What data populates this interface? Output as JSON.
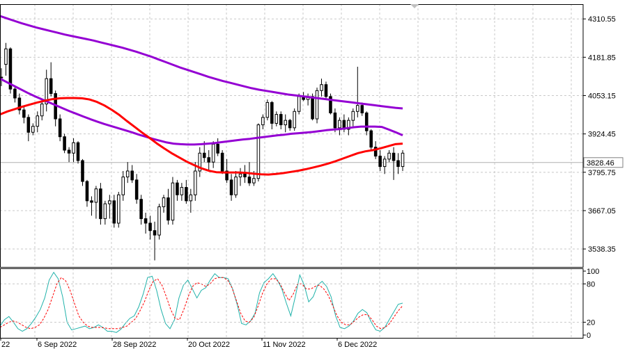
{
  "chart_data": [
    {
      "type": "candlestick",
      "title": "",
      "yaxis": {
        "range": [
          3478,
          4360
        ],
        "tick_labels": [
          "4310.55",
          "4181.85",
          "4053.15",
          "3924.45",
          "3795.75",
          "3667.05",
          "3538.35"
        ],
        "tick_values": [
          4310.55,
          4181.85,
          4053.15,
          3924.45,
          3795.75,
          3667.05,
          3538.35
        ]
      },
      "current_price": {
        "label": "3828.46",
        "value": 3828.46
      },
      "grid": true,
      "candles": [
        [
          4115,
          4145,
          4085,
          4115
        ],
        [
          4158,
          4230,
          4120,
          4210
        ],
        [
          4210,
          4215,
          4060,
          4075
        ],
        [
          4075,
          4085,
          4030,
          4045
        ],
        [
          4045,
          4060,
          3990,
          4005
        ],
        [
          4005,
          4020,
          3960,
          3980
        ],
        [
          3980,
          3990,
          3900,
          3930
        ],
        [
          3930,
          3960,
          3920,
          3950
        ],
        [
          3950,
          4000,
          3930,
          3985
        ],
        [
          3985,
          4040,
          3970,
          4025
        ],
        [
          4025,
          4140,
          4000,
          4110
        ],
        [
          4110,
          4165,
          4050,
          4060
        ],
        [
          4060,
          4070,
          3950,
          3975
        ],
        [
          3975,
          3990,
          3900,
          3915
        ],
        [
          3915,
          3925,
          3860,
          3870
        ],
        [
          3870,
          3880,
          3830,
          3860
        ],
        [
          3860,
          3910,
          3830,
          3895
        ],
        [
          3895,
          3900,
          3825,
          3835
        ],
        [
          3835,
          3840,
          3750,
          3765
        ],
        [
          3765,
          3770,
          3680,
          3700
        ],
        [
          3700,
          3715,
          3650,
          3695
        ],
        [
          3695,
          3750,
          3640,
          3740
        ],
        [
          3740,
          3760,
          3620,
          3640
        ],
        [
          3640,
          3700,
          3620,
          3690
        ],
        [
          3690,
          3720,
          3640,
          3700
        ],
        [
          3700,
          3720,
          3610,
          3625
        ],
        [
          3625,
          3730,
          3610,
          3720
        ],
        [
          3720,
          3800,
          3700,
          3780
        ],
        [
          3780,
          3830,
          3760,
          3800
        ],
        [
          3800,
          3820,
          3760,
          3770
        ],
        [
          3770,
          3790,
          3690,
          3705
        ],
        [
          3705,
          3720,
          3620,
          3640
        ],
        [
          3640,
          3660,
          3590,
          3625
        ],
        [
          3625,
          3650,
          3570,
          3600
        ],
        [
          3600,
          3630,
          3500,
          3585
        ],
        [
          3585,
          3690,
          3570,
          3680
        ],
        [
          3680,
          3720,
          3660,
          3710
        ],
        [
          3710,
          3740,
          3620,
          3635
        ],
        [
          3635,
          3780,
          3620,
          3760
        ],
        [
          3760,
          3770,
          3700,
          3720
        ],
        [
          3720,
          3760,
          3700,
          3745
        ],
        [
          3745,
          3770,
          3690,
          3700
        ],
        [
          3700,
          3740,
          3660,
          3720
        ],
        [
          3720,
          3830,
          3700,
          3800
        ],
        [
          3800,
          3880,
          3780,
          3860
        ],
        [
          3860,
          3900,
          3830,
          3845
        ],
        [
          3845,
          3870,
          3800,
          3830
        ],
        [
          3830,
          3900,
          3810,
          3890
        ],
        [
          3890,
          3910,
          3850,
          3860
        ],
        [
          3860,
          3870,
          3790,
          3800
        ],
        [
          3800,
          3840,
          3760,
          3770
        ],
        [
          3770,
          3790,
          3700,
          3720
        ],
        [
          3720,
          3800,
          3710,
          3780
        ],
        [
          3780,
          3810,
          3750,
          3790
        ],
        [
          3790,
          3820,
          3760,
          3780
        ],
        [
          3780,
          3830,
          3750,
          3760
        ],
        [
          3760,
          3800,
          3750,
          3775
        ],
        [
          3775,
          3960,
          3765,
          3955
        ],
        [
          3955,
          3990,
          3940,
          3980
        ],
        [
          3980,
          4040,
          3970,
          4030
        ],
        [
          4030,
          4035,
          3940,
          3960
        ],
        [
          3960,
          4000,
          3950,
          3990
        ],
        [
          3990,
          4000,
          3940,
          3955
        ],
        [
          3955,
          3990,
          3930,
          3970
        ],
        [
          3970,
          3975,
          3935,
          3945
        ],
        [
          3945,
          4010,
          3935,
          4000
        ],
        [
          4000,
          4060,
          3990,
          4050
        ],
        [
          4050,
          4065,
          4035,
          4040
        ],
        [
          4040,
          4060,
          4020,
          4050
        ],
        [
          4050,
          4060,
          3970,
          3975
        ],
        [
          3975,
          4080,
          3960,
          4070
        ],
        [
          4070,
          4110,
          4050,
          4090
        ],
        [
          4090,
          4100,
          4040,
          4050
        ],
        [
          4050,
          4060,
          3990,
          3995
        ],
        [
          3995,
          4010,
          3930,
          3945
        ],
        [
          3945,
          3980,
          3920,
          3970
        ],
        [
          3970,
          3990,
          3930,
          3940
        ],
        [
          3940,
          3980,
          3920,
          3970
        ],
        [
          3970,
          4010,
          3950,
          4000
        ],
        [
          4000,
          4150,
          3980,
          4020
        ],
        [
          4020,
          4030,
          3985,
          3995
        ],
        [
          3995,
          4000,
          3920,
          3935
        ],
        [
          3935,
          3940,
          3870,
          3880
        ],
        [
          3880,
          3900,
          3840,
          3850
        ],
        [
          3850,
          3870,
          3800,
          3815
        ],
        [
          3815,
          3850,
          3790,
          3840
        ],
        [
          3840,
          3870,
          3830,
          3860
        ],
        [
          3860,
          3880,
          3770,
          3835
        ],
        [
          3835,
          3860,
          3790,
          3815
        ],
        [
          3815,
          3870,
          3800,
          3860
        ]
      ],
      "series": [
        {
          "name": "",
          "color": "#9400D3",
          "values": [
            4320,
            4312,
            4304,
            4296,
            4289,
            4282,
            4276,
            4270,
            4264,
            4258,
            4253,
            4248,
            4243,
            4238,
            4232,
            4226,
            4220,
            4214,
            4207,
            4200,
            4192,
            4184,
            4175,
            4166,
            4157,
            4148,
            4140,
            4132,
            4124,
            4116,
            4109,
            4102,
            4096,
            4090,
            4084,
            4078,
            4073,
            4069,
            4065,
            4061,
            4057,
            4054,
            4051,
            4048,
            4045,
            4042,
            4039,
            4036,
            4033,
            4030,
            4027,
            4024,
            4021,
            4018,
            4015,
            4012,
            4010
          ]
        },
        {
          "name": "",
          "color": "#9400D3",
          "values": [
            4110,
            4098,
            4086,
            4074,
            4062,
            4051,
            4041,
            4031,
            4021,
            4011,
            4001,
            3992,
            3983,
            3974,
            3966,
            3958,
            3951,
            3944,
            3937,
            3930,
            3922,
            3915,
            3908,
            3902,
            3896,
            3892,
            3890,
            3889,
            3889,
            3890,
            3892,
            3894,
            3897,
            3900,
            3903,
            3906,
            3908,
            3911,
            3914,
            3917,
            3920,
            3922,
            3925,
            3927,
            3929,
            3931,
            3934,
            3937,
            3939,
            3941,
            3944,
            3947,
            3949,
            3949,
            3949,
            3948,
            3939,
            3930,
            3920
          ]
        },
        {
          "name": "",
          "color": "#FF0000",
          "values": [
            3990,
            4000,
            4008,
            4016,
            4023,
            4030,
            4036,
            4041,
            4044,
            4045,
            4045,
            4044,
            4040,
            4032,
            4020,
            4005,
            3988,
            3968,
            3949,
            3930,
            3912,
            3893,
            3876,
            3860,
            3846,
            3832,
            3820,
            3809,
            3801,
            3796,
            3795,
            3795,
            3795,
            3794,
            3791,
            3789,
            3788,
            3790,
            3793,
            3797,
            3801,
            3806,
            3812,
            3818,
            3825,
            3833,
            3842,
            3851,
            3860,
            3866,
            3870,
            3876,
            3883,
            3890,
            3892
          ]
        },
        {
          "name": "",
          "color": "#20B2AA",
          "values": [
            14,
            24,
            29,
            20,
            10,
            6,
            10,
            18,
            28,
            40,
            58,
            86,
            98,
            88,
            60,
            20,
            8,
            10,
            12,
            14,
            10,
            12,
            16,
            12,
            6,
            6,
            4,
            9,
            18,
            26,
            30,
            44,
            64,
            90,
            92,
            70,
            40,
            18,
            10,
            24,
            58,
            78,
            86,
            72,
            58,
            70,
            74,
            86,
            96,
            90,
            90,
            88,
            72,
            48,
            18,
            16,
            22,
            34,
            66,
            82,
            88,
            96,
            86,
            72,
            50,
            30,
            60,
            94,
            78,
            52,
            60,
            78,
            84,
            76,
            60,
            30,
            12,
            10,
            14,
            22,
            34,
            40,
            35,
            20,
            8,
            6,
            12,
            24,
            36,
            48,
            50
          ]
        },
        {
          "name": "",
          "color": "#FF0000",
          "values": [
            12,
            16,
            20,
            22,
            20,
            16,
            12,
            10,
            12,
            16,
            26,
            40,
            60,
            80,
            90,
            85,
            70,
            50,
            30,
            20,
            14,
            12,
            12,
            12,
            11,
            10,
            10,
            10,
            12,
            14,
            20,
            26,
            38,
            52,
            70,
            84,
            88,
            78,
            60,
            40,
            26,
            24,
            40,
            60,
            76,
            82,
            80,
            76,
            80,
            88,
            90,
            90,
            86,
            74,
            54,
            34,
            22,
            20,
            28,
            46,
            66,
            80,
            88,
            88,
            80,
            66,
            54,
            64,
            80,
            80,
            72,
            72,
            76,
            78,
            72,
            62,
            46,
            30,
            20,
            16,
            16,
            22,
            28,
            32,
            32,
            24,
            14,
            10,
            12,
            18,
            28,
            38,
            46
          ]
        }
      ]
    },
    {
      "type": "line",
      "yaxis": {
        "tick_labels": [
          "100",
          "80",
          "20",
          "0"
        ],
        "tick_values": [
          100,
          80,
          20,
          0
        ]
      },
      "x_tick_labels": [
        "22",
        "6 Sep 2022",
        "28 Sep 2022",
        "20 Oct 2022",
        "11 Nov 2022",
        "6 Dec 2022"
      ]
    }
  ]
}
